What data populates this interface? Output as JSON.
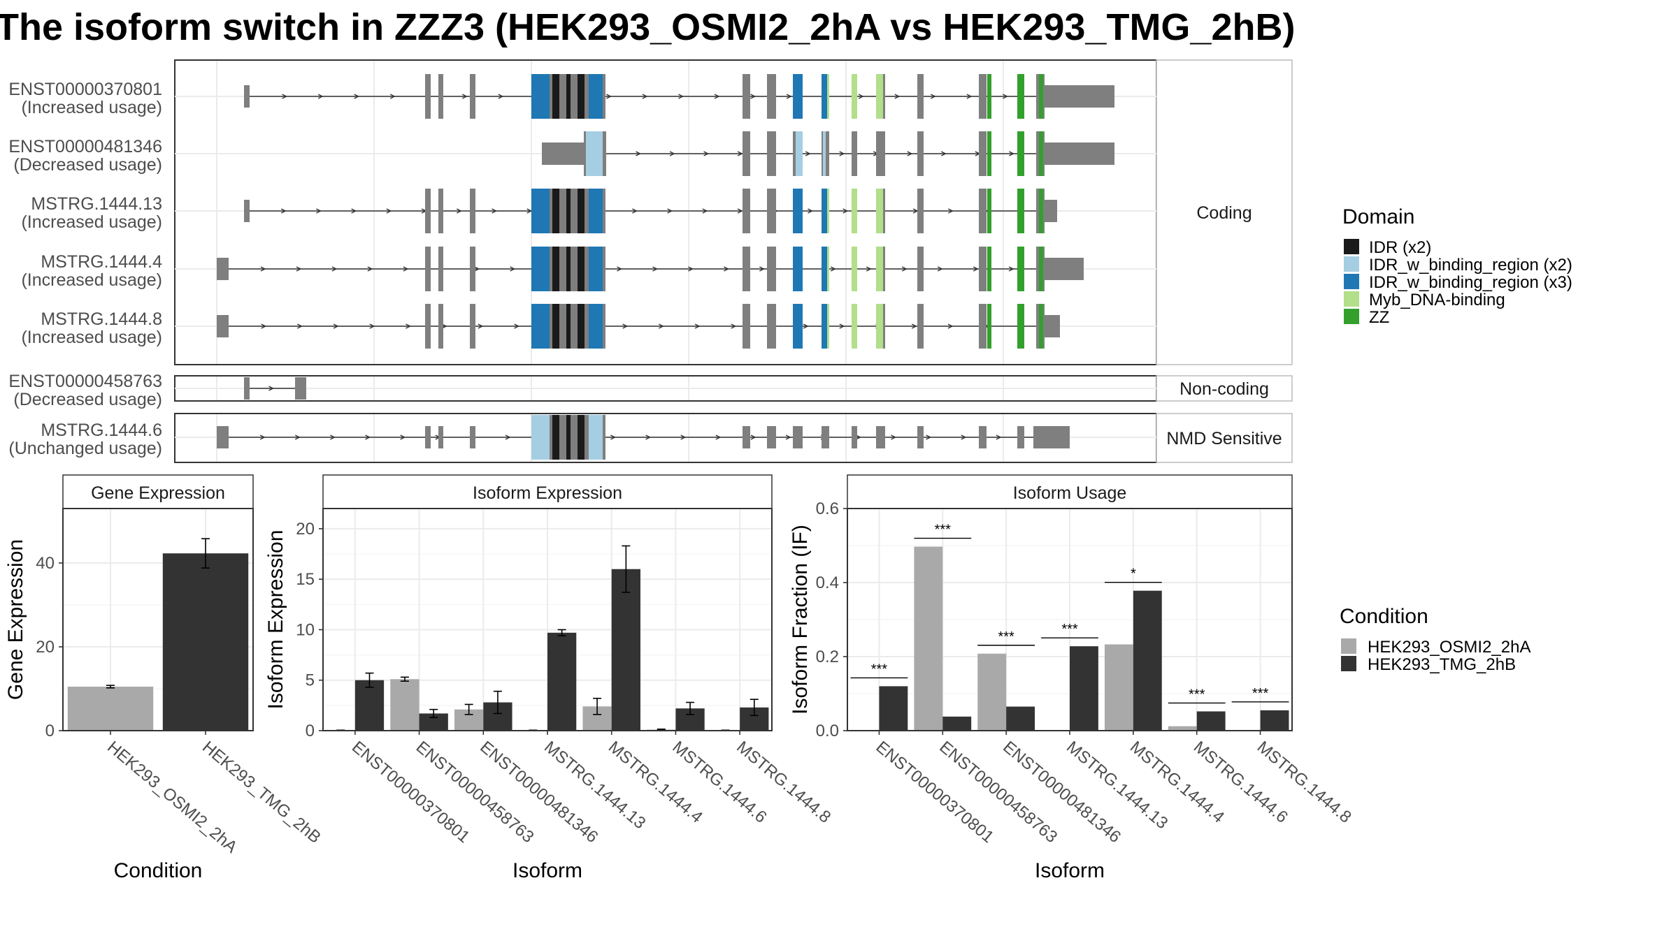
{
  "title": "The isoform switch in ZZZ3 (HEK293_OSMI2_2hA vs HEK293_TMG_2hB)",
  "colors": {
    "exon": "#7f7f7f",
    "idr": "#1a1a1a",
    "idr_bind_light": "#a6cee3",
    "idr_bind_dark": "#1f78b4",
    "myb": "#b2df8a",
    "zz": "#33a02c",
    "cond_a": "#a9a9a9",
    "cond_b": "#333333"
  },
  "transcript_panel": {
    "groups": [
      {
        "label": "Coding",
        "tracks": [
          {
            "name": "ENST00000370801",
            "usage": "(Increased usage)"
          },
          {
            "name": "ENST00000481346",
            "usage": "(Decreased usage)"
          },
          {
            "name": "MSTRG.1444.13",
            "usage": "(Increased usage)"
          },
          {
            "name": "MSTRG.1444.4",
            "usage": "(Increased usage)"
          },
          {
            "name": "MSTRG.1444.8",
            "usage": "(Increased usage)"
          }
        ]
      },
      {
        "label": "Non-coding",
        "tracks": [
          {
            "name": "ENST00000458763",
            "usage": "(Decreased usage)"
          }
        ]
      },
      {
        "label": "NMD Sensitive",
        "tracks": [
          {
            "name": "MSTRG.1444.6",
            "usage": "(Unchanged usage)"
          }
        ]
      }
    ],
    "domain_legend": {
      "title": "Domain",
      "items": [
        {
          "label": "IDR (x2)",
          "color": "#1a1a1a"
        },
        {
          "label": "IDR_w_binding_region (x2)",
          "color": "#a6cee3"
        },
        {
          "label": "IDR_w_binding_region (x3)",
          "color": "#1f78b4"
        },
        {
          "label": "Myb_DNA-binding",
          "color": "#b2df8a"
        },
        {
          "label": "ZZ",
          "color": "#33a02c"
        }
      ]
    }
  },
  "chart_data": [
    {
      "type": "bar",
      "title": "Gene Expression",
      "xlabel": "Condition",
      "ylabel": "Gene Expression",
      "categories": [
        "HEK293_OSMI2_2hA",
        "HEK293_TMG_2hB"
      ],
      "values": [
        10.5,
        42.3
      ],
      "errors": [
        0.3,
        3.5
      ],
      "ylim": [
        0,
        53
      ],
      "yticks": [
        0,
        20,
        40
      ]
    },
    {
      "type": "bar",
      "title": "Isoform Expression",
      "xlabel": "Isoform",
      "ylabel": "Isoform Expression",
      "categories": [
        "ENST00000370801",
        "ENST00000458763",
        "ENST00000481346",
        "MSTRG.1444.13",
        "MSTRG.1444.4",
        "MSTRG.1444.6",
        "MSTRG.1444.8"
      ],
      "series": [
        {
          "name": "HEK293_OSMI2_2hA",
          "values": [
            0.0,
            5.1,
            2.1,
            0.0,
            2.4,
            0.1,
            0.0
          ],
          "errors": [
            0.05,
            0.2,
            0.5,
            0.05,
            0.8,
            0.05,
            0.05
          ]
        },
        {
          "name": "HEK293_TMG_2hB",
          "values": [
            5.0,
            1.7,
            2.8,
            9.7,
            16.0,
            2.2,
            2.3
          ],
          "errors": [
            0.7,
            0.4,
            1.1,
            0.3,
            2.3,
            0.6,
            0.8
          ]
        }
      ],
      "ylim": [
        0,
        22
      ],
      "yticks": [
        0,
        5,
        10,
        15,
        20
      ]
    },
    {
      "type": "bar",
      "title": "Isoform Usage",
      "xlabel": "Isoform",
      "ylabel": "Isoform Fraction (IF)",
      "categories": [
        "ENST00000370801",
        "ENST00000458763",
        "ENST00000481346",
        "MSTRG.1444.13",
        "MSTRG.1444.4",
        "MSTRG.1444.6",
        "MSTRG.1444.8"
      ],
      "series": [
        {
          "name": "HEK293_OSMI2_2hA",
          "values": [
            0.0,
            0.497,
            0.208,
            0.0,
            0.233,
            0.012,
            0.0
          ]
        },
        {
          "name": "HEK293_TMG_2hB",
          "values": [
            0.12,
            0.038,
            0.065,
            0.228,
            0.378,
            0.052,
            0.055
          ]
        }
      ],
      "significance": [
        "***",
        "***",
        "***",
        "***",
        "*",
        "***",
        "***"
      ],
      "ylim": [
        0,
        0.6
      ],
      "yticks": [
        0.0,
        0.2,
        0.4,
        0.6
      ]
    }
  ],
  "condition_legend": {
    "title": "Condition",
    "items": [
      {
        "label": "HEK293_OSMI2_2hA",
        "color": "#a9a9a9"
      },
      {
        "label": "HEK293_TMG_2hB",
        "color": "#333333"
      }
    ]
  }
}
